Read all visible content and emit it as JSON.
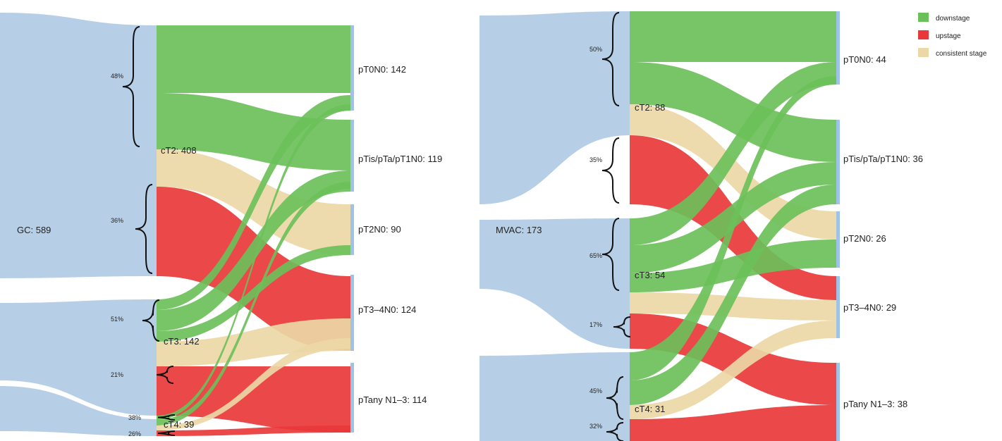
{
  "colors": {
    "source": "#b7cfe6",
    "downstage": "#6cc05a",
    "upstage": "#e8383a",
    "consistent": "#ecd8a6",
    "node_bar": "#9fc3e6"
  },
  "legend": [
    {
      "label": "downstage",
      "color": "#6cc05a"
    },
    {
      "label": "upstage",
      "color": "#e8383a"
    },
    {
      "label": "consistent stage",
      "color": "#ecd8a6"
    }
  ],
  "panels": [
    {
      "id": "gc",
      "source_label": "GC: 589",
      "nodes": {
        "cT2": {
          "label": "cT2: 408"
        },
        "cT3": {
          "label": "cT3: 142"
        },
        "cT4": {
          "label": "cT4: 39"
        }
      },
      "targets": {
        "pT0N0": {
          "label": "pT0N0: 142"
        },
        "pTis": {
          "label": "pTis/pTa/pT1N0: 119"
        },
        "pT2N0": {
          "label": "pT2N0: 90"
        },
        "pT34": {
          "label": "pT3–4N0: 124"
        },
        "pTany": {
          "label": "pTany N1–3: 114"
        }
      },
      "percentages": {
        "cT2_down": "48%",
        "cT2_up": "36%",
        "cT3_down": "51%",
        "cT3_up": "21%",
        "cT4_down": "38%",
        "cT4_up": "26%"
      }
    },
    {
      "id": "mvac",
      "source_label": "MVAC: 173",
      "nodes": {
        "cT2": {
          "label": "cT2: 88"
        },
        "cT3": {
          "label": "cT3: 54"
        },
        "cT4": {
          "label": "cT4: 31"
        }
      },
      "targets": {
        "pT0N0": {
          "label": "pT0N0: 44"
        },
        "pTis": {
          "label": "pTis/pTa/pT1N0: 36"
        },
        "pT2N0": {
          "label": "pT2N0: 26"
        },
        "pT34": {
          "label": "pT3–4N0: 29"
        },
        "pTany": {
          "label": "pTany N1–3: 38"
        }
      },
      "percentages": {
        "cT2_down": "50%",
        "cT2_up": "35%",
        "cT3_down": "65%",
        "cT3_up": "17%",
        "cT4_down": "45%",
        "cT4_up": "32%"
      }
    }
  ]
}
